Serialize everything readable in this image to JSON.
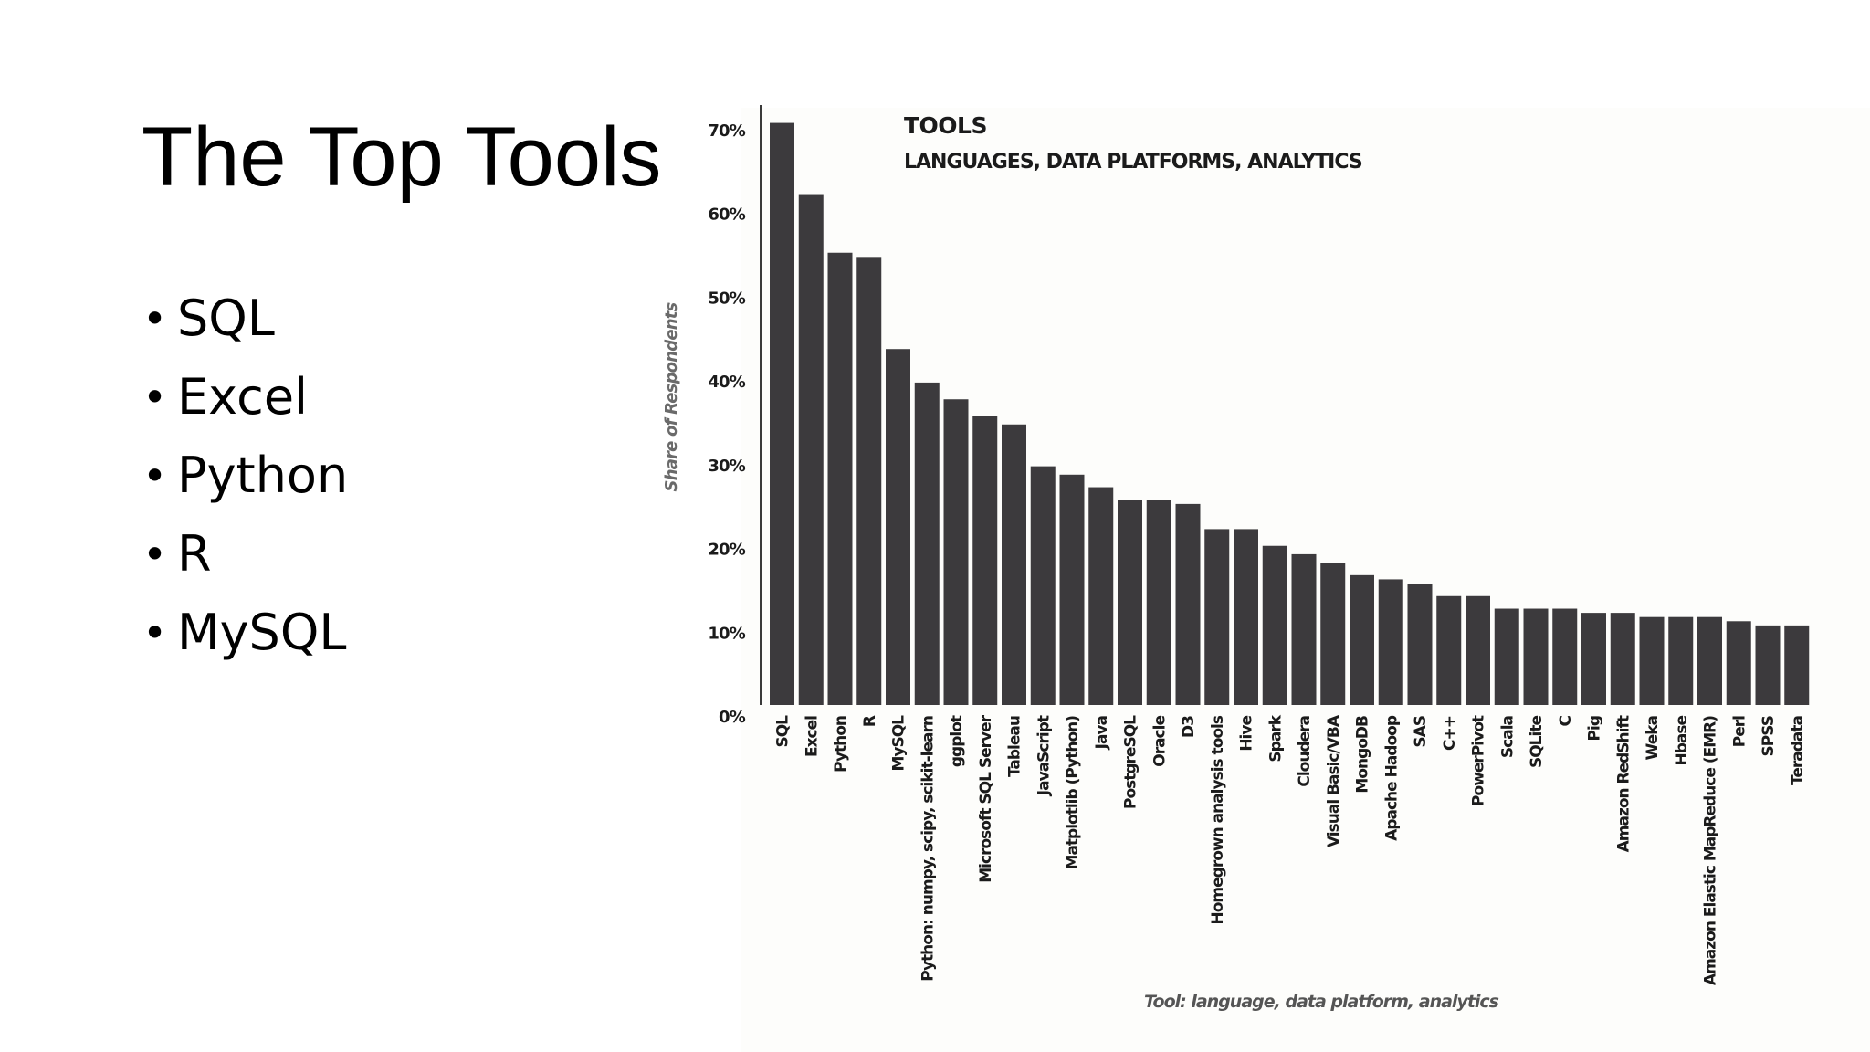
{
  "slide": {
    "title": "The Top Tools",
    "bullets": [
      "SQL",
      "Excel",
      "Python",
      "R",
      "MySQL"
    ]
  },
  "colors": {
    "bar": "#3c3a3d",
    "text": "#1b1b1b",
    "axis": "#3a3a3a",
    "chart_background": "#fdfdfb"
  },
  "chart_data": {
    "type": "bar",
    "title": "TOOLS",
    "subtitle": "LANGUAGES, DATA PLATFORMS, ANALYTICS",
    "xlabel": "Tool: language, data platform, analytics",
    "ylabel": "Share of Respondents",
    "ylim": [
      0,
      70
    ],
    "yticks": [
      "0%",
      "10%",
      "20%",
      "30%",
      "40%",
      "50%",
      "60%",
      "70%"
    ],
    "grid": false,
    "categories": [
      "SQL",
      "Excel",
      "Python",
      "R",
      "MySQL",
      "Python: numpy, scipy, scikit-learn",
      "ggplot",
      "Microsoft SQL Server",
      "Tableau",
      "JavaScript",
      "Matplotlib (Python)",
      "Java",
      "PostgreSQL",
      "Oracle",
      "D3",
      "Homegrown analysis tools",
      "Hive",
      "Spark",
      "Cloudera",
      "Visual Basic/VBA",
      "MongoDB",
      "Apache Hadoop",
      "SAS",
      "C++",
      "PowerPivot",
      "Scala",
      "SQLite",
      "C",
      "Pig",
      "Amazon RedShift",
      "Weka",
      "Hbase",
      "Amazon Elastic MapReduce (EMR)",
      "Perl",
      "SPSS",
      "Teradata"
    ],
    "values": [
      69.5,
      61,
      54,
      53.5,
      42.5,
      38.5,
      36.5,
      34.5,
      33.5,
      28.5,
      27.5,
      26,
      24.5,
      24.5,
      24,
      21,
      21,
      19,
      18,
      17,
      15.5,
      15,
      14.5,
      13,
      13,
      11.5,
      11.5,
      11.5,
      11,
      11,
      10.5,
      10.5,
      10.5,
      10,
      9.5,
      9.5
    ]
  }
}
